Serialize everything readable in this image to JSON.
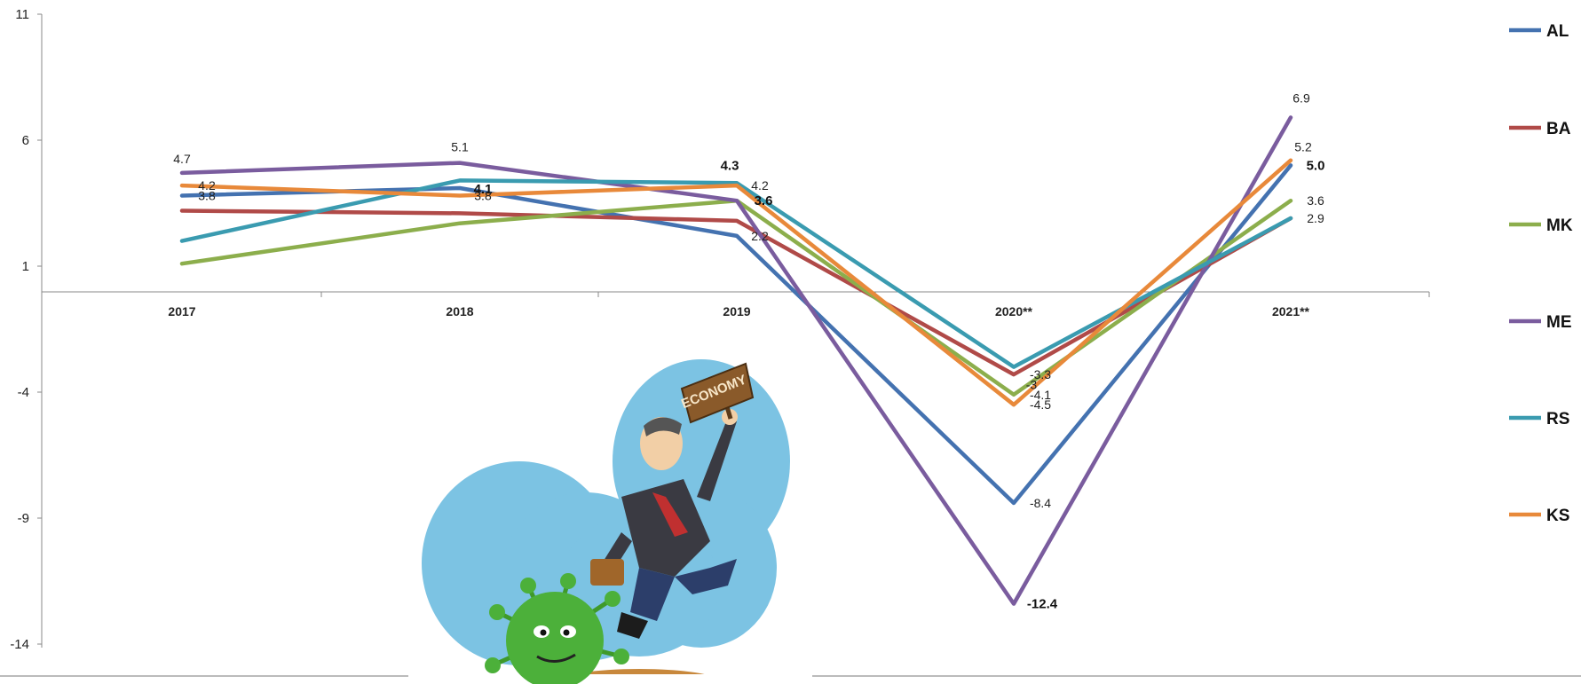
{
  "chart_data": {
    "type": "line",
    "categories": [
      "2017",
      "2018",
      "2019",
      "2020**",
      "2021**"
    ],
    "yticks": [
      "11",
      "6",
      "1",
      "-4",
      "-9",
      "-14"
    ],
    "ylim": [
      -14,
      11
    ],
    "grid": false,
    "legend": "right",
    "series": [
      {
        "name": "AL",
        "color": "#4472b0",
        "values": [
          3.8,
          4.1,
          2.2,
          -8.4,
          5.0
        ]
      },
      {
        "name": "BA",
        "color": "#b04a48",
        "values": [
          3.2,
          3.1,
          2.8,
          -3.3,
          2.9
        ]
      },
      {
        "name": "MK",
        "color": "#8cae4c",
        "values": [
          1.1,
          2.7,
          3.6,
          -4.1,
          3.6
        ]
      },
      {
        "name": "ME",
        "color": "#7a5c9e",
        "values": [
          4.7,
          5.1,
          3.6,
          -12.4,
          6.9
        ]
      },
      {
        "name": "RS",
        "color": "#3a9bb0",
        "values": [
          2.0,
          4.4,
          4.3,
          -3.0,
          2.9
        ]
      },
      {
        "name": "KS",
        "color": "#e8893a",
        "values": [
          4.2,
          3.8,
          4.2,
          -4.5,
          5.2
        ]
      }
    ],
    "annotations": [
      {
        "text": "4.7",
        "ci": 0,
        "v": 4.7,
        "dx": 0,
        "dy": -16,
        "bold": false
      },
      {
        "text": "4.2",
        "ci": 0,
        "v": 4.2,
        "dx": 28,
        "dy": 0,
        "bold": false
      },
      {
        "text": "3.8",
        "ci": 0,
        "v": 3.8,
        "dx": 28,
        "dy": 0,
        "bold": false
      },
      {
        "text": "5.1",
        "ci": 1,
        "v": 5.1,
        "dx": 0,
        "dy": -18,
        "bold": false
      },
      {
        "text": "4.1",
        "ci": 1,
        "v": 4.1,
        "dx": 26,
        "dy": 1,
        "bold": true
      },
      {
        "text": "3.8",
        "ci": 1,
        "v": 3.8,
        "dx": 26,
        "dy": 0,
        "bold": false
      },
      {
        "text": "4.3",
        "ci": 2,
        "v": 4.3,
        "dx": -8,
        "dy": -20,
        "bold": true
      },
      {
        "text": "4.2",
        "ci": 2,
        "v": 4.2,
        "dx": 26,
        "dy": 0,
        "bold": false
      },
      {
        "text": "3.6",
        "ci": 2,
        "v": 3.6,
        "dx": 30,
        "dy": 0,
        "bold": true
      },
      {
        "text": "2.2",
        "ci": 2,
        "v": 2.2,
        "dx": 26,
        "dy": 0,
        "bold": false
      },
      {
        "text": "-3.3",
        "ci": 3,
        "v": -3.3,
        "dx": 30,
        "dy": 0,
        "bold": false
      },
      {
        "text": "-3",
        "ci": 3,
        "v": -3.7,
        "dx": 20,
        "dy": 0,
        "bold": false
      },
      {
        "text": "-4.1",
        "ci": 3,
        "v": -4.1,
        "dx": 30,
        "dy": 0,
        "bold": false
      },
      {
        "text": "-4.5",
        "ci": 3,
        "v": -4.5,
        "dx": 30,
        "dy": 0,
        "bold": false
      },
      {
        "text": "-8.4",
        "ci": 3,
        "v": -8.4,
        "dx": 30,
        "dy": 0,
        "bold": false
      },
      {
        "text": "-12.4",
        "ci": 3,
        "v": -12.4,
        "dx": 32,
        "dy": 0,
        "bold": true
      },
      {
        "text": "6.9",
        "ci": 4,
        "v": 6.9,
        "dx": 12,
        "dy": -22,
        "bold": false
      },
      {
        "text": "5.2",
        "ci": 4,
        "v": 5.2,
        "dx": 14,
        "dy": -15,
        "bold": false
      },
      {
        "text": "5.0",
        "ci": 4,
        "v": 5.0,
        "dx": 28,
        "dy": 0,
        "bold": true
      },
      {
        "text": "3.6",
        "ci": 4,
        "v": 3.6,
        "dx": 28,
        "dy": 0,
        "bold": false
      },
      {
        "text": "2.9",
        "ci": 4,
        "v": 2.9,
        "dx": 28,
        "dy": 0,
        "bold": false
      }
    ]
  },
  "illustration": {
    "sign_text": "ECONOMY"
  }
}
